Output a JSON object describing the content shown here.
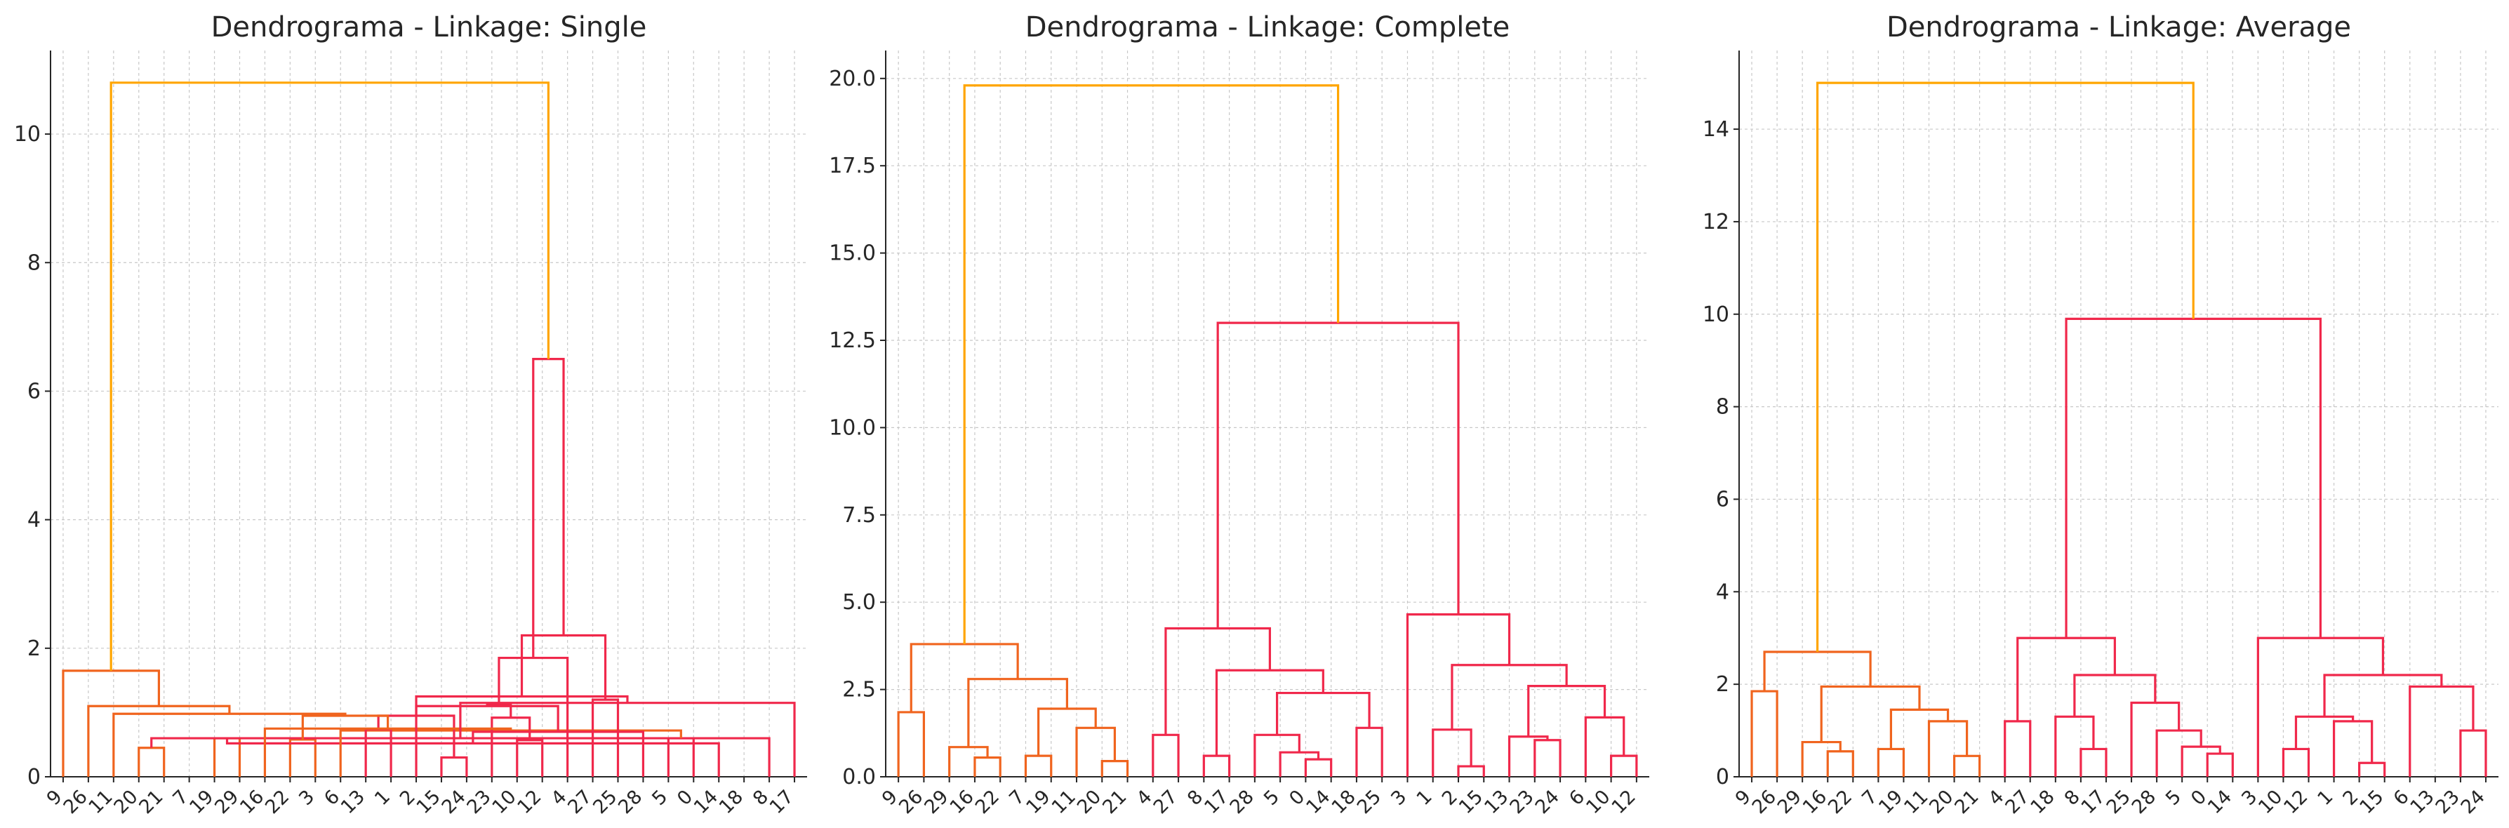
{
  "colors": {
    "above_threshold": "#FFA500",
    "cluster_left": "#F0641E",
    "cluster_right": "#F0284B",
    "axis": "#262626",
    "grid": "#c8c8c8"
  },
  "chart_data": [
    {
      "type": "dendrogram",
      "title": "Dendrograma - Linkage: Single",
      "ylim": [
        0,
        11.3
      ],
      "yticks": [
        0,
        2,
        4,
        6,
        8,
        10
      ],
      "ytick_labels": [
        "0",
        "2",
        "4",
        "6",
        "8",
        "10"
      ],
      "grid": true,
      "leaves": [
        "9",
        "26",
        "11",
        "20",
        "21",
        "7",
        "19",
        "29",
        "16",
        "22",
        "3",
        "6",
        "13",
        "1",
        "2",
        "15",
        "24",
        "23",
        "10",
        "12",
        "4",
        "27",
        "25",
        "28",
        "5",
        "0",
        "14",
        "18",
        "8",
        "17"
      ],
      "links": [
        {
          "left": 3,
          "right": 4,
          "height": 0.45,
          "color": "cluster_left"
        },
        {
          "left": 15,
          "right": 16,
          "height": 0.3,
          "color": "cluster_right"
        },
        {
          "left": 24,
          "right": 25,
          "height": 0.6,
          "color": "cluster_right"
        },
        {
          "left": 6,
          "right": 7,
          "height": 0.6,
          "color": "cluster_left"
        },
        {
          "left": 9,
          "right": 10,
          "height": 0.58,
          "color": "cluster_left"
        },
        {
          "left": 30,
          "right": 28,
          "height": 0.6,
          "color": "cluster_right"
        },
        {
          "left": 18,
          "right": 19,
          "height": 0.57,
          "color": "cluster_right"
        },
        {
          "left": 33,
          "right": 26,
          "height": 0.52,
          "color": "cluster_right"
        },
        {
          "left": 32,
          "right": 11,
          "height": 0.72,
          "color": "cluster_left"
        },
        {
          "left": 12,
          "right": 13,
          "height": 0.74,
          "color": "cluster_right"
        },
        {
          "left": 17,
          "right": 36,
          "height": 0.92,
          "color": "cluster_right"
        },
        {
          "left": 23,
          "right": 37,
          "height": 0.7,
          "color": "cluster_right"
        },
        {
          "left": 31,
          "right": 39,
          "height": 0.95,
          "color": "cluster_right"
        },
        {
          "left": 8,
          "right": 38,
          "height": 0.75,
          "color": "cluster_left"
        },
        {
          "left": 34,
          "right": 43,
          "height": 0.95,
          "color": "cluster_left"
        },
        {
          "left": 14,
          "right": 41,
          "height": 1.1,
          "color": "cluster_right"
        },
        {
          "left": 40,
          "right": 45,
          "height": 1.12,
          "color": "cluster_right"
        },
        {
          "left": 29,
          "right": 35,
          "height": 1.15,
          "color": "cluster_right"
        },
        {
          "left": 42,
          "right": 47,
          "height": 1.25,
          "color": "cluster_right"
        },
        {
          "left": 2,
          "right": 44,
          "height": 0.98,
          "color": "cluster_left"
        },
        {
          "left": 1,
          "right": 49,
          "height": 1.1,
          "color": "cluster_left"
        },
        {
          "left": 21,
          "right": 22,
          "height": 1.2,
          "color": "cluster_right"
        },
        {
          "left": 0,
          "right": 50,
          "height": 1.65,
          "color": "cluster_left"
        },
        {
          "left": 51,
          "right": 48,
          "height": 2.2,
          "color": "cluster_right"
        },
        {
          "left": 20,
          "right": 46,
          "height": 1.85,
          "color": "cluster_right"
        },
        {
          "left": 54,
          "right": 53,
          "height": 6.5,
          "color": "cluster_right"
        },
        {
          "left": 52,
          "right": 55,
          "height": 10.8,
          "color": "above_threshold"
        }
      ]
    },
    {
      "type": "dendrogram",
      "title": "Dendrograma - Linkage: Complete",
      "ylim": [
        0,
        20.8
      ],
      "yticks": [
        0,
        2.5,
        5,
        7.5,
        10,
        12.5,
        15,
        17.5,
        20
      ],
      "ytick_labels": [
        "0.0",
        "2.5",
        "5.0",
        "7.5",
        "10.0",
        "12.5",
        "15.0",
        "17.5",
        "20.0"
      ],
      "grid": true,
      "leaves": [
        "9",
        "26",
        "29",
        "16",
        "22",
        "7",
        "19",
        "11",
        "20",
        "21",
        "4",
        "27",
        "8",
        "17",
        "28",
        "5",
        "0",
        "14",
        "18",
        "25",
        "3",
        "1",
        "2",
        "15",
        "13",
        "23",
        "24",
        "6",
        "10",
        "12"
      ],
      "links": [
        {
          "left": 22,
          "right": 23,
          "height": 0.3,
          "color": "cluster_right"
        },
        {
          "left": 8,
          "right": 9,
          "height": 0.45,
          "color": "cluster_left"
        },
        {
          "left": 16,
          "right": 17,
          "height": 0.5,
          "color": "cluster_right"
        },
        {
          "left": 3,
          "right": 4,
          "height": 0.55,
          "color": "cluster_left"
        },
        {
          "left": 5,
          "right": 6,
          "height": 0.6,
          "color": "cluster_left"
        },
        {
          "left": 12,
          "right": 13,
          "height": 0.6,
          "color": "cluster_right"
        },
        {
          "left": 28,
          "right": 29,
          "height": 0.6,
          "color": "cluster_right"
        },
        {
          "left": 15,
          "right": 32,
          "height": 0.7,
          "color": "cluster_right"
        },
        {
          "left": 2,
          "right": 33,
          "height": 0.85,
          "color": "cluster_left"
        },
        {
          "left": 25,
          "right": 26,
          "height": 1.05,
          "color": "cluster_right"
        },
        {
          "left": 24,
          "right": 39,
          "height": 1.15,
          "color": "cluster_right"
        },
        {
          "left": 10,
          "right": 11,
          "height": 1.2,
          "color": "cluster_right"
        },
        {
          "left": 14,
          "right": 37,
          "height": 1.2,
          "color": "cluster_right"
        },
        {
          "left": 21,
          "right": 30,
          "height": 1.35,
          "color": "cluster_right"
        },
        {
          "left": 7,
          "right": 31,
          "height": 1.4,
          "color": "cluster_left"
        },
        {
          "left": 18,
          "right": 19,
          "height": 1.4,
          "color": "cluster_right"
        },
        {
          "left": 27,
          "right": 36,
          "height": 1.7,
          "color": "cluster_right"
        },
        {
          "left": 0,
          "right": 1,
          "height": 1.85,
          "color": "cluster_left"
        },
        {
          "left": 34,
          "right": 44,
          "height": 1.95,
          "color": "cluster_left"
        },
        {
          "left": 42,
          "right": 45,
          "height": 2.4,
          "color": "cluster_right"
        },
        {
          "left": 40,
          "right": 46,
          "height": 2.6,
          "color": "cluster_right"
        },
        {
          "left": 38,
          "right": 48,
          "height": 2.8,
          "color": "cluster_left"
        },
        {
          "left": 35,
          "right": 49,
          "height": 3.05,
          "color": "cluster_right"
        },
        {
          "left": 43,
          "right": 50,
          "height": 3.2,
          "color": "cluster_right"
        },
        {
          "left": 47,
          "right": 51,
          "height": 3.8,
          "color": "cluster_left"
        },
        {
          "left": 41,
          "right": 52,
          "height": 4.25,
          "color": "cluster_right"
        },
        {
          "left": 20,
          "right": 53,
          "height": 4.65,
          "color": "cluster_right"
        },
        {
          "left": 55,
          "right": 56,
          "height": 13.0,
          "color": "cluster_right"
        },
        {
          "left": 54,
          "right": 57,
          "height": 19.8,
          "color": "above_threshold"
        }
      ]
    },
    {
      "type": "dendrogram",
      "title": "Dendrograma - Linkage: Average",
      "ylim": [
        0,
        15.7
      ],
      "yticks": [
        0,
        2,
        4,
        6,
        8,
        10,
        12,
        14
      ],
      "ytick_labels": [
        "0",
        "2",
        "4",
        "6",
        "8",
        "10",
        "12",
        "14"
      ],
      "grid": true,
      "leaves": [
        "9",
        "26",
        "29",
        "16",
        "22",
        "7",
        "19",
        "11",
        "20",
        "21",
        "4",
        "27",
        "18",
        "8",
        "17",
        "25",
        "28",
        "5",
        "0",
        "14",
        "3",
        "10",
        "12",
        "1",
        "2",
        "15",
        "6",
        "13",
        "23",
        "24"
      ],
      "links": [
        {
          "left": 24,
          "right": 25,
          "height": 0.3,
          "color": "cluster_right"
        },
        {
          "left": 8,
          "right": 9,
          "height": 0.45,
          "color": "cluster_left"
        },
        {
          "left": 18,
          "right": 19,
          "height": 0.5,
          "color": "cluster_right"
        },
        {
          "left": 3,
          "right": 4,
          "height": 0.55,
          "color": "cluster_left"
        },
        {
          "left": 5,
          "right": 6,
          "height": 0.6,
          "color": "cluster_left"
        },
        {
          "left": 13,
          "right": 14,
          "height": 0.6,
          "color": "cluster_right"
        },
        {
          "left": 21,
          "right": 22,
          "height": 0.6,
          "color": "cluster_right"
        },
        {
          "left": 17,
          "right": 32,
          "height": 0.65,
          "color": "cluster_right"
        },
        {
          "left": 2,
          "right": 33,
          "height": 0.75,
          "color": "cluster_left"
        },
        {
          "left": 28,
          "right": 29,
          "height": 1.0,
          "color": "cluster_right"
        },
        {
          "left": 16,
          "right": 37,
          "height": 1.0,
          "color": "cluster_right"
        },
        {
          "left": 10,
          "right": 11,
          "height": 1.2,
          "color": "cluster_right"
        },
        {
          "left": 7,
          "right": 31,
          "height": 1.2,
          "color": "cluster_left"
        },
        {
          "left": 23,
          "right": 30,
          "height": 1.2,
          "color": "cluster_right"
        },
        {
          "left": 12,
          "right": 35,
          "height": 1.3,
          "color": "cluster_right"
        },
        {
          "left": 36,
          "right": 43,
          "height": 1.3,
          "color": "cluster_right"
        },
        {
          "left": 34,
          "right": 42,
          "height": 1.45,
          "color": "cluster_left"
        },
        {
          "left": 15,
          "right": 40,
          "height": 1.6,
          "color": "cluster_right"
        },
        {
          "left": 0,
          "right": 1,
          "height": 1.85,
          "color": "cluster_left"
        },
        {
          "left": 38,
          "right": 46,
          "height": 1.95,
          "color": "cluster_left"
        },
        {
          "left": 26,
          "right": 39,
          "height": 1.95,
          "color": "cluster_right"
        },
        {
          "left": 44,
          "right": 47,
          "height": 2.2,
          "color": "cluster_right"
        },
        {
          "left": 45,
          "right": 50,
          "height": 2.2,
          "color": "cluster_right"
        },
        {
          "left": 48,
          "right": 49,
          "height": 2.7,
          "color": "cluster_left"
        },
        {
          "left": 41,
          "right": 51,
          "height": 3.0,
          "color": "cluster_right"
        },
        {
          "left": 20,
          "right": 52,
          "height": 3.0,
          "color": "cluster_right"
        },
        {
          "left": 54,
          "right": 55,
          "height": 9.9,
          "color": "cluster_right"
        },
        {
          "left": 53,
          "right": 56,
          "height": 15.0,
          "color": "above_threshold"
        }
      ]
    }
  ]
}
